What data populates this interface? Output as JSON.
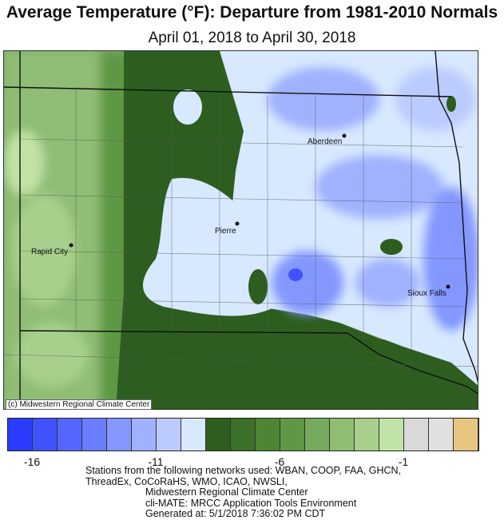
{
  "title": "Average Temperature (°F): Departure from 1981-2010 Normals",
  "subtitle": "April 01, 2018 to April 30, 2018",
  "copyright": "(c) Midwestern Regional Climate Center",
  "cities": [
    {
      "name": "Aberdeen"
    },
    {
      "name": "Pierre"
    },
    {
      "name": "Rapid City"
    },
    {
      "name": "Sioux Falls"
    }
  ],
  "legend": {
    "colors": [
      "#2b3cff",
      "#3f52ff",
      "#5367ff",
      "#6a7dff",
      "#8397ff",
      "#a0b1ff",
      "#bccbff",
      "#d7e8ff",
      "#2d5e1f",
      "#3b7128",
      "#4d8535",
      "#5e9844",
      "#76aa5c",
      "#8fbd74",
      "#a8d08c",
      "#c1e3a5",
      "#d9d9d9",
      "#e0e0e0",
      "#e8c580"
    ],
    "tick_labels": [
      "-16",
      "-11",
      "-6",
      "-1"
    ]
  },
  "notes": {
    "line1": "Stations from the following networks used:  WBAN, COOP, FAA, GHCN,",
    "line2": "ThreadEx, CoCoRaHS, WMO, ICAO, NWSLI,",
    "line3": "Midwestern Regional Climate Center",
    "line4": "cli-MATE: MRCC Application Tools Environment",
    "line5": "Generated at: 5/1/2018 7:36:02 PM CDT"
  }
}
